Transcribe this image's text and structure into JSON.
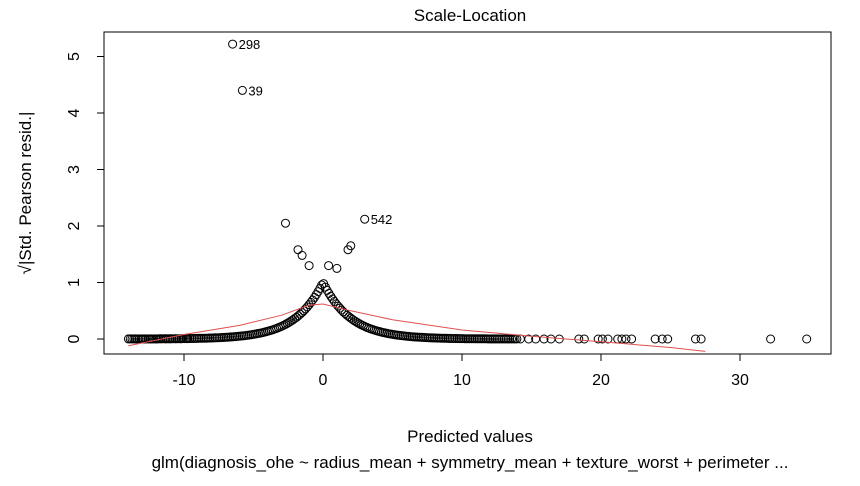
{
  "chart_data": {
    "type": "scatter",
    "title": "Scale-Location",
    "xlabel": "Predicted values",
    "ylabel": "√|Std. Pearson resid.|",
    "subtitle": "glm(diagnosis_ohe ~ radius_mean + symmetry_mean + texture_worst + perimeter ...",
    "xlim": [
      -14,
      35
    ],
    "ylim": [
      0,
      5.2
    ],
    "x_ticks": [
      -10,
      0,
      10,
      20,
      30
    ],
    "y_ticks": [
      0,
      1,
      2,
      3,
      4,
      5
    ],
    "grid": false,
    "legend": "none",
    "point_color": "#000000",
    "smooth_color": "#e05050",
    "labeled_points": [
      {
        "x": -6.5,
        "y": 5.22,
        "label": "298"
      },
      {
        "x": -5.8,
        "y": 4.4,
        "label": "39"
      },
      {
        "x": 3.0,
        "y": 2.12,
        "label": "542"
      }
    ],
    "extra_points": [
      {
        "x": -2.7,
        "y": 2.05
      },
      {
        "x": 1.8,
        "y": 1.58
      },
      {
        "x": 2.0,
        "y": 1.65
      },
      {
        "x": 1.0,
        "y": 1.25
      },
      {
        "x": -1.8,
        "y": 1.58
      },
      {
        "x": -1.5,
        "y": 1.48
      },
      {
        "x": 0.4,
        "y": 1.3
      },
      {
        "x": -1.0,
        "y": 1.3
      }
    ],
    "sparse_zero_x": [
      -13.5,
      -13.0,
      -12.8,
      -12.4,
      -12.0,
      -11.7,
      -11.3,
      -11.0,
      -10.6,
      -10.2,
      -9.8,
      14.2,
      14.8,
      15.3,
      15.9,
      16.4,
      17.0,
      18.4,
      18.8,
      19.8,
      20.1,
      20.5,
      21.2,
      21.5,
      21.8,
      22.2,
      23.9,
      24.4,
      24.8,
      26.8,
      27.2,
      32.2,
      34.8
    ],
    "smooth": {
      "x": [
        -14,
        -10,
        -6,
        -3,
        -1,
        0,
        2,
        5,
        10,
        15,
        20,
        25,
        27.5
      ],
      "y": [
        -0.12,
        0.08,
        0.24,
        0.42,
        0.6,
        0.62,
        0.5,
        0.34,
        0.16,
        0.05,
        -0.05,
        -0.15,
        -0.22
      ]
    }
  }
}
